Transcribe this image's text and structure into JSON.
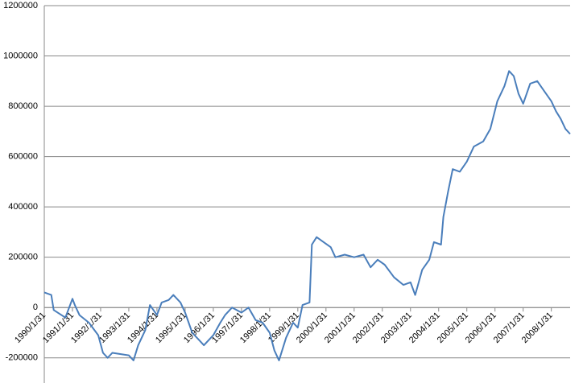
{
  "chart_data": {
    "type": "line",
    "x": [
      "1990/1",
      "1990/4",
      "1990/5",
      "1990/10",
      "1991/1",
      "1991/2",
      "1991/4",
      "1991/8",
      "1991/12",
      "1992/2",
      "1992/4",
      "1992/6",
      "1993/1",
      "1993/3",
      "1993/5",
      "1993/8",
      "1993/10",
      "1994/1",
      "1994/3",
      "1994/6",
      "1994/8",
      "1994/11",
      "1995/1",
      "1995/4",
      "1995/7",
      "1995/9",
      "1996/1",
      "1996/4",
      "1996/6",
      "1996/9",
      "1997/1",
      "1997/4",
      "1997/7",
      "1997/10",
      "1998/1",
      "1998/3",
      "1998/5",
      "1998/8",
      "1998/11",
      "1999/1",
      "1999/3",
      "1999/6",
      "1999/7",
      "1999/9",
      "1999/12",
      "2000/3",
      "2000/5",
      "2000/9",
      "2001/1",
      "2001/5",
      "2001/8",
      "2001/11",
      "2002/2",
      "2002/6",
      "2002/10",
      "2003/1",
      "2003/3",
      "2003/6",
      "2003/9",
      "2003/11",
      "2004/2",
      "2004/3",
      "2004/5",
      "2004/7",
      "2004/10",
      "2005/1",
      "2005/4",
      "2005/8",
      "2005/11",
      "2006/2",
      "2006/5",
      "2006/7",
      "2006/9",
      "2006/11",
      "2007/1",
      "2007/4",
      "2007/7",
      "2007/10",
      "2008/1",
      "2008/3",
      "2008/5",
      "2008/7",
      "2008/9"
    ],
    "series": [
      {
        "color": "#4a7ebb",
        "values": [
          60000,
          50000,
          -10000,
          -40000,
          35000,
          10000,
          -30000,
          -60000,
          -110000,
          -180000,
          -200000,
          -180000,
          -190000,
          -210000,
          -150000,
          -90000,
          10000,
          -30000,
          20000,
          30000,
          50000,
          20000,
          -20000,
          -100000,
          -130000,
          -150000,
          -110000,
          -60000,
          -30000,
          0,
          -20000,
          0,
          -50000,
          -60000,
          -100000,
          -170000,
          -210000,
          -120000,
          -60000,
          -80000,
          10000,
          20000,
          250000,
          280000,
          260000,
          240000,
          200000,
          210000,
          200000,
          210000,
          160000,
          190000,
          170000,
          120000,
          90000,
          100000,
          50000,
          150000,
          190000,
          260000,
          250000,
          360000,
          460000,
          550000,
          540000,
          580000,
          640000,
          660000,
          710000,
          820000,
          880000,
          940000,
          920000,
          850000,
          810000,
          890000,
          900000,
          860000,
          820000,
          780000,
          750000,
          710000,
          690000
        ]
      }
    ],
    "xlim": [
      "1990/1/31",
      "2008/9/30"
    ],
    "xticks": [
      "1990/1/31",
      "1991/1/31",
      "1992/1/31",
      "1993/1/31",
      "1994/1/31",
      "1995/1/31",
      "1996/1/31",
      "1997/1/31",
      "1998/1/31",
      "1999/1/31",
      "2000/1/31",
      "2001/1/31",
      "2002/1/31",
      "2003/1/31",
      "2004/1/31",
      "2005/1/31",
      "2006/1/31",
      "2007/1/31",
      "2008/1/31"
    ],
    "ylim": [
      -300000,
      1200000
    ],
    "yticks": [
      -200000,
      0,
      200000,
      400000,
      600000,
      800000,
      1000000,
      1200000
    ],
    "grid": true
  }
}
